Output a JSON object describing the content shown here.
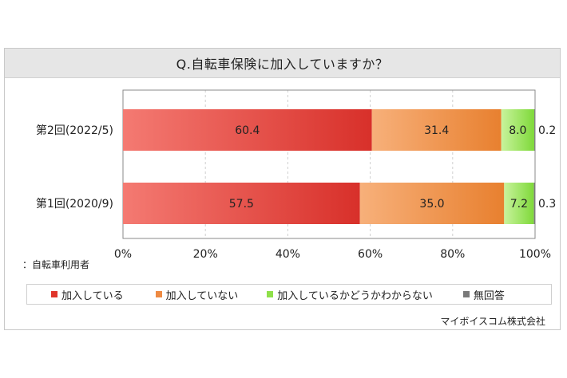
{
  "title": "Q.自転車保険に加入していますか？",
  "note": "：自転車利用者",
  "source": "マイボイスコム株式会社",
  "chart_data": {
    "type": "bar",
    "orientation": "horizontal",
    "stacked": true,
    "title": "Q.自転車保険に加入していますか？",
    "categories": [
      "第2回(2022/5)",
      "第1回(2020/9)"
    ],
    "series": [
      {
        "name": "加入している",
        "values": [
          60.4,
          57.5
        ],
        "color": "#e0352b"
      },
      {
        "name": "加入していない",
        "values": [
          31.4,
          35.0
        ],
        "color": "#ee8a42"
      },
      {
        "name": "加入しているかどうかわからない",
        "values": [
          8.0,
          7.2
        ],
        "color": "#8fe04a"
      },
      {
        "name": "無回答",
        "values": [
          0.2,
          0.3
        ],
        "color": "#7a7a7a"
      }
    ],
    "xticks": [
      "0%",
      "20%",
      "40%",
      "60%",
      "80%",
      "100%"
    ],
    "xlim": [
      0,
      100
    ],
    "grid": true,
    "legend_position": "bottom"
  }
}
